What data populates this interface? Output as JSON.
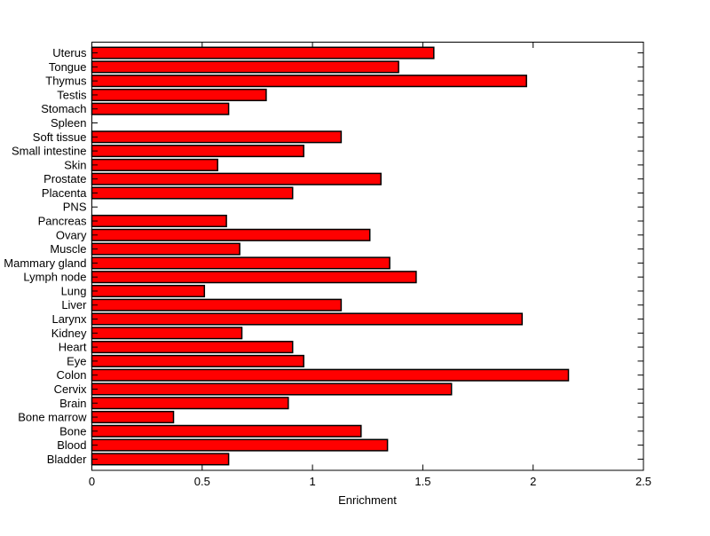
{
  "figure": {
    "background": "#ffffff"
  },
  "chart_data": {
    "type": "bar",
    "orientation": "horizontal",
    "title": "",
    "xlabel": "Enrichment",
    "ylabel": "",
    "xlim": [
      0,
      2.5
    ],
    "xticks": [
      0,
      0.5,
      1,
      1.5,
      2,
      2.5
    ],
    "xtick_labels": [
      "0",
      "0.5",
      "1",
      "1.5",
      "2",
      "2.5"
    ],
    "grid": false,
    "legend": null,
    "bar_color": "#ff0000",
    "bar_edge_color": "#000000",
    "axis_color": "#000000",
    "categories": [
      "Uterus",
      "Tongue",
      "Thymus",
      "Testis",
      "Stomach",
      "Spleen",
      "Soft tissue",
      "Small intestine",
      "Skin",
      "Prostate",
      "Placenta",
      "PNS",
      "Pancreas",
      "Ovary",
      "Muscle",
      "Mammary gland",
      "Lymph node",
      "Lung",
      "Liver",
      "Larynx",
      "Kidney",
      "Heart",
      "Eye",
      "Colon",
      "Cervix",
      "Brain",
      "Bone marrow",
      "Bone",
      "Blood",
      "Bladder"
    ],
    "values": [
      1.55,
      1.39,
      1.97,
      0.79,
      0.62,
      0,
      1.13,
      0.96,
      0.57,
      1.31,
      0.91,
      0,
      0.61,
      1.26,
      0.67,
      1.35,
      1.47,
      0.51,
      1.13,
      1.95,
      0.68,
      0.91,
      0.96,
      2.16,
      1.63,
      0.89,
      0.37,
      1.22,
      1.34,
      0.62
    ]
  }
}
